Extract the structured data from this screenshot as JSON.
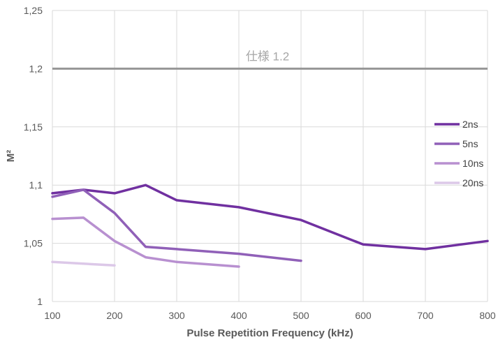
{
  "chart_data": {
    "type": "line",
    "title": "",
    "xlabel": "Pulse Repetition Frequency (kHz)",
    "ylabel": "M²",
    "xlim": [
      100,
      800
    ],
    "ylim": [
      1,
      1.25
    ],
    "x_ticks": [
      100,
      200,
      300,
      400,
      500,
      600,
      700,
      800
    ],
    "x_tick_labels": [
      "100",
      "200",
      "300",
      "400",
      "500",
      "600",
      "700",
      "800"
    ],
    "y_ticks": [
      1,
      1.05,
      1.1,
      1.15,
      1.2,
      1.25
    ],
    "y_tick_labels": [
      "1",
      "1,05",
      "1,1",
      "1,15",
      "1,2",
      "1,25"
    ],
    "grid": true,
    "legend_position": "right",
    "series": [
      {
        "name": "2ns",
        "color": "#7030a0",
        "x": [
          100,
          150,
          200,
          250,
          300,
          400,
          500,
          600,
          700,
          800
        ],
        "values": [
          1.093,
          1.096,
          1.093,
          1.1,
          1.087,
          1.081,
          1.07,
          1.049,
          1.045,
          1.052
        ]
      },
      {
        "name": "5ns",
        "color": "#9060b8",
        "x": [
          100,
          150,
          200,
          250,
          300,
          400,
          500
        ],
        "values": [
          1.09,
          1.096,
          1.076,
          1.047,
          1.045,
          1.041,
          1.035
        ]
      },
      {
        "name": "10ns",
        "color": "#b890d0",
        "x": [
          100,
          150,
          200,
          250,
          300,
          400
        ],
        "values": [
          1.071,
          1.072,
          1.052,
          1.038,
          1.034,
          1.03
        ]
      },
      {
        "name": "20ns",
        "color": "#dcc8e8",
        "x": [
          100,
          200
        ],
        "values": [
          1.034,
          1.031
        ]
      }
    ],
    "reference_line": {
      "value": 1.2,
      "label": "仕様 1.2",
      "color": "#969696"
    }
  }
}
